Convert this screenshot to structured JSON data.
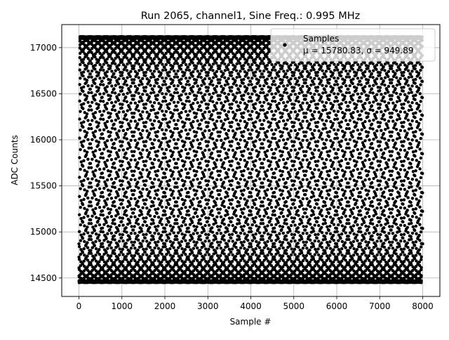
{
  "chart_data": {
    "type": "scatter",
    "title": "Run 2065, channel1, Sine Freq.: 0.995 MHz",
    "xlabel": "Sample #",
    "ylabel": "ADC Counts",
    "xlim": [
      -400,
      8400
    ],
    "ylim": [
      14300,
      17250
    ],
    "xticks": [
      0,
      1000,
      2000,
      3000,
      4000,
      5000,
      6000,
      7000,
      8000
    ],
    "yticks": [
      14500,
      15000,
      15500,
      16000,
      16500,
      17000
    ],
    "xtick_labels": [
      "0",
      "1000",
      "2000",
      "3000",
      "4000",
      "5000",
      "6000",
      "7000",
      "8000"
    ],
    "ytick_labels": [
      "14500",
      "15000",
      "15500",
      "16000",
      "16500",
      "17000"
    ],
    "grid": true,
    "legend": {
      "placement": "top-right",
      "entries": [
        {
          "label": "Samples",
          "stats": "μ = 15780.83, σ = 949.89"
        }
      ]
    },
    "series": [
      {
        "name": "Samples",
        "color": "#000000",
        "marker": "circle",
        "sample_range": [
          0,
          8000
        ],
        "mean": 15780.83,
        "sigma": 949.89,
        "min": 14450,
        "max": 17120,
        "signal": "sine",
        "sine_freq_mhz": 0.995
      }
    ]
  }
}
